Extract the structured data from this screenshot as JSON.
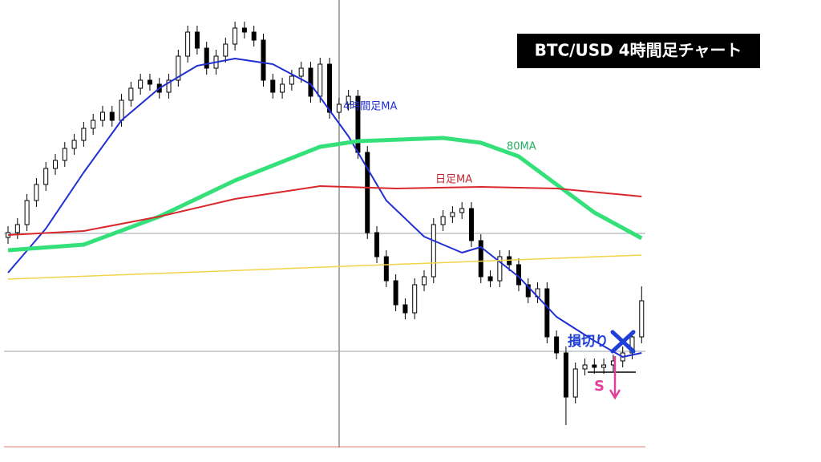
{
  "chart_data": {
    "type": "candlestick",
    "title": "BTC/USD  4時間足チャート",
    "xlim": [
      -0.85,
      67.4
    ],
    "ylim": [
      0,
      576
    ],
    "open": [
      280,
      286,
      296,
      326,
      346,
      366,
      376,
      391,
      401,
      416,
      426,
      436,
      426,
      451,
      466,
      476,
      471,
      461,
      476,
      506,
      536,
      516,
      491,
      506,
      521,
      541,
      536,
      526,
      476,
      461,
      471,
      481,
      491,
      456,
      496,
      436,
      446,
      456,
      386,
      286,
      256,
      226,
      196,
      186,
      221,
      231,
      296,
      306,
      311,
      316,
      276,
      231,
      226,
      256,
      246,
      221,
      206,
      216,
      156,
      136,
      81,
      116,
      121,
      118,
      121,
      126,
      136,
      156
    ],
    "high": [
      294,
      304,
      334,
      354,
      374,
      384,
      399,
      409,
      424,
      434,
      444,
      444,
      459,
      474,
      484,
      484,
      479,
      484,
      514,
      544,
      544,
      524,
      514,
      529,
      549,
      549,
      544,
      534,
      484,
      479,
      489,
      499,
      499,
      504,
      504,
      454,
      464,
      464,
      394,
      294,
      264,
      234,
      204,
      229,
      239,
      304,
      314,
      319,
      324,
      324,
      284,
      239,
      264,
      264,
      254,
      229,
      224,
      224,
      164,
      144,
      124,
      129,
      129,
      129,
      134,
      144,
      164,
      219
    ],
    "low": [
      272,
      278,
      288,
      318,
      338,
      358,
      368,
      383,
      393,
      408,
      418,
      418,
      418,
      443,
      458,
      463,
      453,
      453,
      468,
      498,
      508,
      483,
      483,
      498,
      513,
      528,
      518,
      468,
      453,
      453,
      463,
      473,
      448,
      448,
      428,
      428,
      438,
      378,
      278,
      248,
      218,
      188,
      178,
      178,
      213,
      223,
      288,
      298,
      303,
      268,
      223,
      218,
      218,
      238,
      213,
      198,
      198,
      148,
      128,
      46,
      73,
      108,
      110,
      110,
      113,
      118,
      128,
      148
    ],
    "close": [
      286,
      296,
      326,
      346,
      366,
      376,
      391,
      401,
      416,
      426,
      436,
      426,
      451,
      466,
      476,
      471,
      461,
      476,
      506,
      536,
      516,
      491,
      506,
      521,
      541,
      536,
      526,
      476,
      461,
      471,
      481,
      491,
      456,
      496,
      436,
      446,
      456,
      386,
      286,
      256,
      226,
      196,
      186,
      221,
      231,
      296,
      306,
      311,
      316,
      276,
      231,
      226,
      256,
      246,
      221,
      206,
      216,
      156,
      136,
      81,
      116,
      121,
      118,
      121,
      126,
      136,
      156,
      201
    ],
    "up_color": "#ffffff",
    "down_color": "#000000",
    "lines": [
      {
        "name": "4時間足MA",
        "color": "#1f2fd0",
        "width": 2,
        "x": [
          0,
          4,
          8,
          12,
          16,
          20,
          24,
          28,
          32,
          36,
          40,
          44,
          48,
          50,
          54,
          58,
          62,
          65,
          67
        ],
        "values": [
          236,
          291,
          361,
          426,
          466,
          494,
          503,
          496,
          471,
          406,
          326,
          281,
          261,
          268,
          231,
          181,
          151,
          131,
          136
        ]
      },
      {
        "name": "80MA",
        "color": "#33e07a",
        "width": 5,
        "x": [
          0,
          8,
          16,
          24,
          33,
          37,
          46,
          50,
          54,
          58,
          62,
          67
        ],
        "values": [
          264,
          271,
          306,
          351,
          393,
          400,
          404,
          398,
          381,
          346,
          311,
          279
        ]
      },
      {
        "name": "日足MA",
        "color": "#d8282c",
        "width": 2,
        "x": [
          0,
          8,
          16,
          24,
          33,
          41,
          50,
          58,
          67
        ],
        "values": [
          283,
          288,
          306,
          328,
          344,
          341,
          343,
          341,
          331
        ]
      },
      {
        "color": "#f2d34a",
        "width": 1.5,
        "x": [
          0,
          67
        ],
        "values": [
          228,
          258
        ]
      }
    ],
    "levels": [
      {
        "value": 285,
        "color": "#9aa3ad"
      },
      {
        "value": 138,
        "color": "#9aa3ad"
      },
      {
        "value": 19,
        "color": "#e08070"
      }
    ],
    "annotations": {
      "stop": "損切り",
      "short": "S"
    }
  }
}
